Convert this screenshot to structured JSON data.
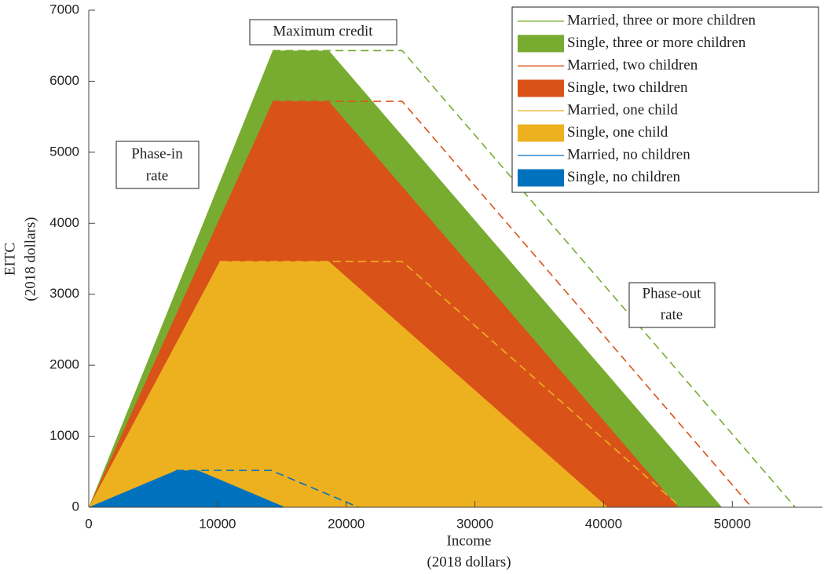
{
  "chart_data": {
    "type": "area",
    "x_label": [
      "Income",
      "(2018 dollars)"
    ],
    "y_label": [
      "EITC",
      "(2018 dollars)"
    ],
    "xlim": [
      0,
      57000
    ],
    "xticks": [
      0,
      10000,
      20000,
      30000,
      40000,
      50000
    ],
    "ylim": [
      0,
      7000
    ],
    "yticks": [
      0,
      1000,
      2000,
      3000,
      4000,
      5000,
      6000,
      7000
    ],
    "grid": false,
    "legend": "upper right",
    "annotations": [
      [
        "Maximum credit"
      ],
      [
        "Phase-in",
        "rate"
      ],
      [
        "Phase-out",
        "rate"
      ]
    ],
    "series": [
      {
        "name": "Married, three or more children",
        "color": "#77ac30",
        "style": "dashed",
        "x": [
          14290,
          24350,
          54884
        ],
        "values": [
          6431,
          6431,
          0
        ]
      },
      {
        "name": "Single, three or more children",
        "color": "#77ac30",
        "style": "filled",
        "x": [
          0,
          14290,
          18660,
          49194
        ],
        "values": [
          0,
          6431,
          6431,
          0
        ]
      },
      {
        "name": "Married, two children",
        "color": "#d95319",
        "style": "dashed",
        "x": [
          14290,
          24350,
          51492
        ],
        "values": [
          5716,
          5716,
          0
        ]
      },
      {
        "name": "Single, two children",
        "color": "#d95319",
        "style": "filled",
        "x": [
          0,
          14290,
          18660,
          45802
        ],
        "values": [
          0,
          5716,
          5716,
          0
        ]
      },
      {
        "name": "Married, one child",
        "color": "#edb120",
        "style": "dashed",
        "x": [
          10180,
          24350,
          46010
        ],
        "values": [
          3461,
          3461,
          0
        ]
      },
      {
        "name": "Single, one child",
        "color": "#edb120",
        "style": "filled",
        "x": [
          0,
          10180,
          18660,
          40320
        ],
        "values": [
          0,
          3461,
          3461,
          0
        ]
      },
      {
        "name": "Married, no children",
        "color": "#0072bd",
        "style": "dashed",
        "x": [
          6780,
          14170,
          20950
        ],
        "values": [
          519,
          519,
          0
        ]
      },
      {
        "name": "Single, no children",
        "color": "#0072bd",
        "style": "filled",
        "x": [
          0,
          6780,
          8490,
          15270
        ],
        "values": [
          0,
          519,
          519,
          0
        ]
      }
    ]
  }
}
